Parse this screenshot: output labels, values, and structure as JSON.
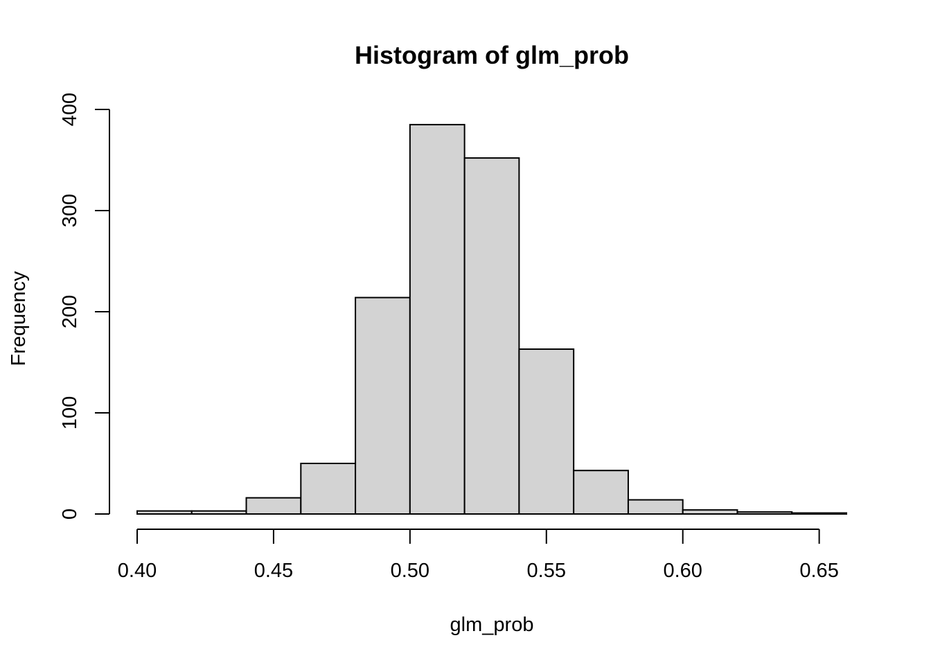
{
  "chart_data": {
    "type": "bar",
    "title": "Histogram of glm_prob",
    "xlabel": "glm_prob",
    "ylabel": "Frequency",
    "bin_edges": [
      0.4,
      0.42,
      0.44,
      0.46,
      0.48,
      0.5,
      0.52,
      0.54,
      0.56,
      0.58,
      0.6,
      0.62,
      0.64,
      0.66
    ],
    "values": [
      3,
      3,
      16,
      50,
      214,
      385,
      352,
      163,
      43,
      14,
      4,
      2,
      1
    ],
    "x_ticks": [
      "0.40",
      "0.45",
      "0.50",
      "0.55",
      "0.60",
      "0.65"
    ],
    "y_ticks": [
      "0",
      "100",
      "200",
      "300",
      "400"
    ],
    "xlim": [
      0.4,
      0.66
    ],
    "ylim": [
      0,
      400
    ],
    "bar_color": "#d3d3d3",
    "grid": false,
    "legend": "none"
  }
}
